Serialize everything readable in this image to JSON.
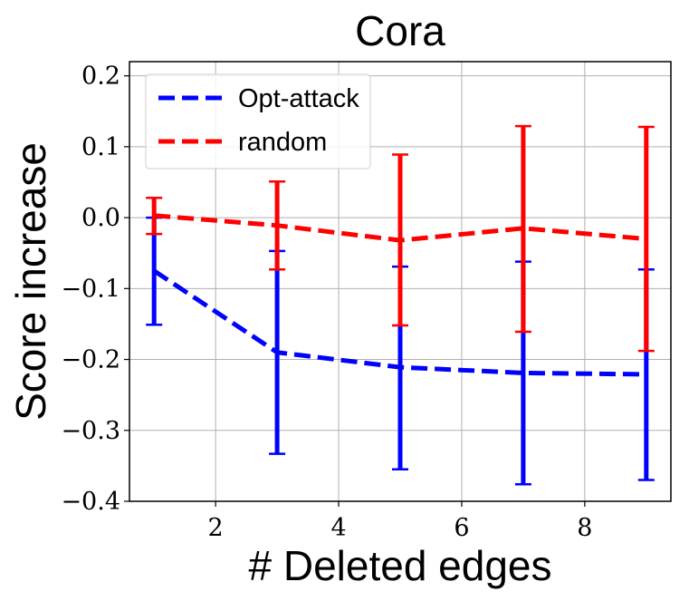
{
  "chart_data": {
    "type": "line",
    "title": "Cora",
    "xlabel": "# Deleted edges",
    "ylabel": "Score increase",
    "xlim": [
      0.6,
      9.4
    ],
    "ylim": [
      -0.4,
      0.22
    ],
    "xticks": [
      2,
      4,
      6,
      8
    ],
    "xtick_labels": [
      "2",
      "4",
      "6",
      "8"
    ],
    "yticks": [
      -0.4,
      -0.3,
      -0.2,
      -0.1,
      0.0,
      0.1,
      0.2
    ],
    "ytick_labels": [
      "−0.4",
      "−0.3",
      "−0.2",
      "−0.1",
      "0.0",
      "0.1",
      "0.2"
    ],
    "grid": true,
    "legend_position": "top-left",
    "x": [
      1,
      3,
      5,
      7,
      9
    ],
    "series": [
      {
        "name": "Opt-attack",
        "color": "#0000ff",
        "line_style": "dashed",
        "values": [
          -0.075,
          -0.19,
          -0.211,
          -0.219,
          -0.221
        ],
        "error_low": [
          -0.151,
          -0.333,
          -0.355,
          -0.376,
          -0.37
        ],
        "error_high": [
          0.0,
          -0.047,
          -0.069,
          -0.062,
          -0.073
        ]
      },
      {
        "name": "random",
        "color": "#ff0000",
        "line_style": "dashed",
        "values": [
          0.003,
          -0.011,
          -0.032,
          -0.015,
          -0.03
        ],
        "error_low": [
          -0.023,
          -0.073,
          -0.152,
          -0.161,
          -0.188
        ],
        "error_high": [
          0.028,
          0.051,
          0.089,
          0.129,
          0.128
        ]
      }
    ]
  }
}
